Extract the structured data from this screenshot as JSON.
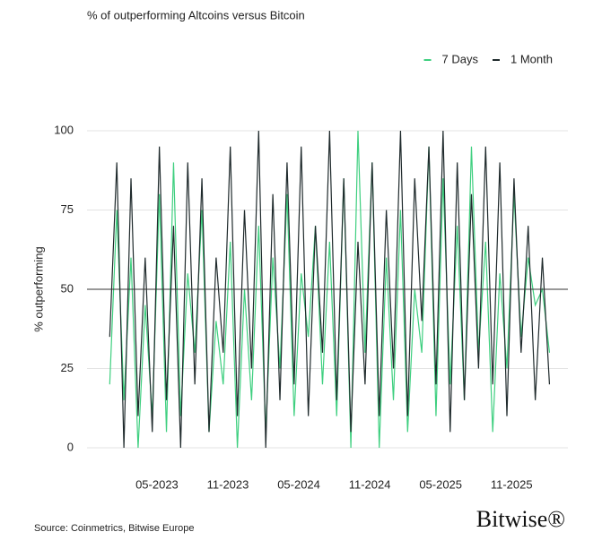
{
  "chart_data": {
    "type": "line",
    "title": "% of outperforming Altcoins versus Bitcoin",
    "y_label": "% outperforming",
    "source": "Source: Coinmetrics, Bitwise Europe",
    "brand": "Bitwise®",
    "x": [
      2023.0,
      2023.05,
      2023.1,
      2023.15,
      2023.2,
      2023.25,
      2023.3,
      2023.35,
      2023.4,
      2023.45,
      2023.5,
      2023.55,
      2023.6,
      2023.65,
      2023.7,
      2023.75,
      2023.8,
      2023.85,
      2023.9,
      2023.95,
      2024.0,
      2024.05,
      2024.1,
      2024.15,
      2024.2,
      2024.25,
      2024.3,
      2024.35,
      2024.4,
      2024.45,
      2024.5,
      2024.55,
      2024.6,
      2024.65,
      2024.7,
      2024.75,
      2024.8,
      2024.85,
      2024.9,
      2024.95,
      2025.0,
      2025.05,
      2025.1,
      2025.15,
      2025.2,
      2025.25,
      2025.3,
      2025.35,
      2025.4,
      2025.45,
      2025.5,
      2025.55,
      2025.6,
      2025.65,
      2025.7,
      2025.75,
      2025.8,
      2025.85,
      2025.9,
      2025.95,
      2026.0,
      2026.05,
      2026.1
    ],
    "series": [
      {
        "name": "7 Days",
        "color": "#3ecf7f",
        "values": [
          20,
          75,
          15,
          60,
          0,
          45,
          10,
          80,
          5,
          90,
          10,
          55,
          30,
          75,
          5,
          40,
          20,
          65,
          0,
          50,
          15,
          70,
          5,
          60,
          25,
          80,
          10,
          55,
          35,
          70,
          20,
          65,
          10,
          85,
          0,
          100,
          30,
          90,
          0,
          60,
          15,
          75,
          5,
          50,
          30,
          95,
          10,
          85,
          20,
          70,
          15,
          95,
          30,
          65,
          5,
          55,
          25,
          80,
          35,
          60,
          45,
          50,
          30
        ]
      },
      {
        "name": "1 Month",
        "color": "#1f2a2c",
        "values": [
          35,
          90,
          0,
          85,
          10,
          60,
          5,
          95,
          15,
          70,
          0,
          90,
          20,
          85,
          5,
          60,
          30,
          95,
          10,
          75,
          25,
          100,
          0,
          80,
          15,
          90,
          20,
          95,
          10,
          70,
          30,
          100,
          15,
          85,
          5,
          65,
          20,
          90,
          10,
          75,
          25,
          100,
          10,
          85,
          40,
          95,
          20,
          100,
          5,
          90,
          15,
          80,
          25,
          95,
          20,
          90,
          10,
          85,
          30,
          70,
          15,
          60,
          20
        ]
      }
    ],
    "xlim": [
      2022.84,
      2026.23
    ],
    "xticks": [
      {
        "value": 2023.333,
        "label": "05-2023"
      },
      {
        "value": 2023.833,
        "label": "11-2023"
      },
      {
        "value": 2024.333,
        "label": "05-2024"
      },
      {
        "value": 2024.833,
        "label": "11-2024"
      },
      {
        "value": 2025.333,
        "label": "05-2025"
      },
      {
        "value": 2025.833,
        "label": "11-2025"
      }
    ],
    "ylim": [
      0,
      100
    ],
    "yticks": [
      0,
      25,
      50,
      75,
      100
    ],
    "reference_line": 50,
    "grid": true,
    "legend": "top-right"
  }
}
